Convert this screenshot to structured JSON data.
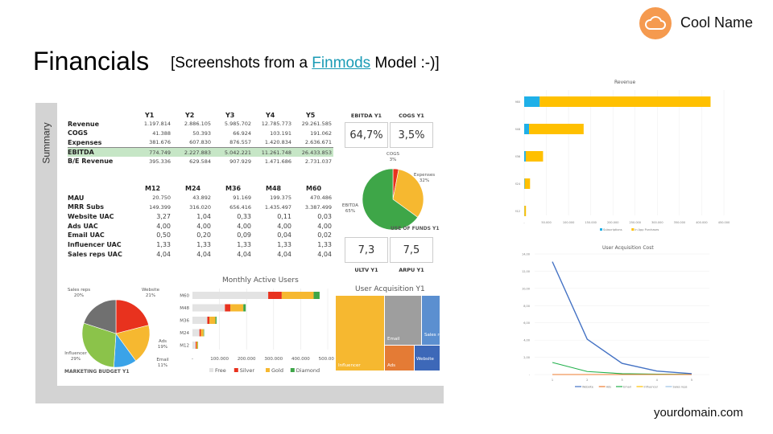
{
  "header": {
    "brand_name": "Cool Name",
    "logo_icon": "cloud-icon",
    "logo_color": "#f59a4f",
    "title": "Financials",
    "subtitle_prefix": "[Screenshots from a ",
    "subtitle_link": "Finmods",
    "subtitle_suffix": " Model :-)]",
    "link_color": "#1a9bb5"
  },
  "footer": {
    "domain": "yourdomain.com"
  },
  "summary": {
    "side_label": "Summary",
    "yearly": {
      "columns": [
        "Y1",
        "Y2",
        "Y3",
        "Y4",
        "Y5"
      ],
      "rows": [
        {
          "label": "Revenue",
          "values": [
            "1.197.814",
            "2.886.105",
            "5.985.702",
            "12.785.773",
            "29.261.585"
          ]
        },
        {
          "label": "COGS",
          "values": [
            "41.388",
            "50.393",
            "66.924",
            "103.191",
            "191.062"
          ]
        },
        {
          "label": "Expenses",
          "values": [
            "381.676",
            "607.830",
            "876.557",
            "1.420.834",
            "2.636.671"
          ]
        },
        {
          "label": "EBITDA",
          "values": [
            "774.749",
            "2.227.883",
            "5.042.221",
            "11.261.748",
            "26.433.853"
          ]
        },
        {
          "label": "B/E Revenue",
          "values": [
            "395.336",
            "629.584",
            "907.929",
            "1.471.686",
            "2.731.037"
          ]
        }
      ]
    },
    "monthly": {
      "columns": [
        "M12",
        "M24",
        "M36",
        "M48",
        "M60"
      ],
      "rows": [
        {
          "label": "MAU",
          "values": [
            "20.750",
            "43.892",
            "91.169",
            "199.375",
            "470.486"
          ]
        },
        {
          "label": "MRR Subs",
          "values": [
            "149.399",
            "316.020",
            "656.416",
            "1.435.497",
            "3.387.499"
          ]
        },
        {
          "label": "Website UAC",
          "values": [
            "3,27",
            "1,04",
            "0,33",
            "0,11",
            "0,03"
          ]
        },
        {
          "label": "Ads UAC",
          "values": [
            "4,00",
            "4,00",
            "4,00",
            "4,00",
            "4,00"
          ]
        },
        {
          "label": "Email UAC",
          "values": [
            "0,50",
            "0,20",
            "0,09",
            "0,04",
            "0,02"
          ]
        },
        {
          "label": "Influencer UAC",
          "values": [
            "1,33",
            "1,33",
            "1,33",
            "1,33",
            "1,33"
          ]
        },
        {
          "label": "Sales reps UAC",
          "values": [
            "4,04",
            "4,04",
            "4,04",
            "4,04",
            "4,04"
          ]
        }
      ]
    },
    "kpis": [
      {
        "label": "EBITDA Y1",
        "value": "64,7%"
      },
      {
        "label": "COGS Y1",
        "value": "3,5%"
      },
      {
        "label": "ULTV Y1",
        "value": "7,3"
      },
      {
        "label": "ARPU Y1",
        "value": "7,5"
      }
    ]
  },
  "chart_data": [
    {
      "type": "pie",
      "title": "USE OF FUNDS Y1",
      "slices": [
        {
          "name": "COGS",
          "value": 3,
          "label": "3%",
          "color": "#e8321e"
        },
        {
          "name": "Expenses",
          "value": 32,
          "label": "32%",
          "color": "#f6b830"
        },
        {
          "name": "EBITDA",
          "value": 65,
          "label": "65%",
          "color": "#3ea648"
        }
      ]
    },
    {
      "type": "pie",
      "title": "MARKETING BUDGET Y1",
      "slices": [
        {
          "name": "Website",
          "value": 21,
          "label": "21%",
          "color": "#e8321e"
        },
        {
          "name": "Ads",
          "value": 19,
          "label": "19%",
          "color": "#f6b830"
        },
        {
          "name": "Email",
          "value": 11,
          "label": "11%",
          "color": "#3aa3e8"
        },
        {
          "name": "Influencer",
          "value": 29,
          "label": "29%",
          "color": "#8bc34a"
        },
        {
          "name": "Sales reps",
          "value": 20,
          "label": "20%",
          "color": "#707070"
        }
      ]
    },
    {
      "type": "bar",
      "orientation": "horizontal-stacked",
      "title": "Monthly Active Users",
      "categories": [
        "M60",
        "M48",
        "M36",
        "M24",
        "M12"
      ],
      "series": [
        {
          "name": "Free",
          "color": "#e3e3e3",
          "values": [
            280000,
            120000,
            55000,
            26000,
            12000
          ]
        },
        {
          "name": "Silver",
          "color": "#e8321e",
          "values": [
            50000,
            20000,
            8000,
            5000,
            3000
          ]
        },
        {
          "name": "Gold",
          "color": "#f6b830",
          "values": [
            118000,
            48000,
            22000,
            10000,
            4500
          ]
        },
        {
          "name": "Diamond",
          "color": "#3ea648",
          "values": [
            22000,
            9000,
            4000,
            2000,
            1200
          ]
        }
      ],
      "xticks": [
        "-",
        "100.000",
        "200.000",
        "300.000",
        "400.000",
        "500.000"
      ],
      "xlim": [
        0,
        500000
      ],
      "legend": "bottom"
    },
    {
      "type": "treemap",
      "title": "User Acquisition Y1",
      "items": [
        {
          "name": "Influencer",
          "color": "#f6b830"
        },
        {
          "name": "Email",
          "color": "#9e9e9e"
        },
        {
          "name": "Sales reps",
          "color": "#5b8fd0"
        },
        {
          "name": "Ads",
          "color": "#e47b35"
        },
        {
          "name": "Website",
          "color": "#3d68b8"
        }
      ]
    },
    {
      "type": "bar",
      "orientation": "horizontal-stacked",
      "title": "Revenue",
      "categories": [
        "M60",
        "M48",
        "M36",
        "M24",
        "M12"
      ],
      "series": [
        {
          "name": "Subscriptions",
          "color": "#1fb0e8",
          "values": [
            35000,
            11000,
            3500,
            1200,
            500
          ]
        },
        {
          "name": "In App Purchases",
          "color": "#ffc000",
          "values": [
            385000,
            123000,
            39000,
            12000,
            3500
          ]
        }
      ],
      "xticks": [
        "-",
        "50.000",
        "100.000",
        "150.000",
        "200.000",
        "250.000",
        "300.000",
        "350.000",
        "400.000",
        "450.000"
      ],
      "xlim": [
        0,
        450000
      ],
      "legend": "bottom"
    },
    {
      "type": "line",
      "title": "User Acquisition Cost",
      "x": [
        1,
        2,
        3,
        4,
        5
      ],
      "series": [
        {
          "name": "Website",
          "color": "#4472c4",
          "values": [
            13.1,
            4.1,
            1.3,
            0.4,
            0.1
          ]
        },
        {
          "name": "Ads",
          "color": "#ed7d31",
          "values": [
            0,
            0,
            0,
            0,
            0
          ]
        },
        {
          "name": "Email",
          "color": "#21b04b",
          "values": [
            1.4,
            0.35,
            0.1,
            0.04,
            0.02
          ]
        },
        {
          "name": "Influencer",
          "color": "#ffc000",
          "values": [
            0,
            0,
            0,
            0,
            0
          ]
        },
        {
          "name": "Sales reps",
          "color": "#9dc3e6",
          "values": [
            0,
            0,
            0,
            0,
            0
          ]
        }
      ],
      "yticks": [
        "-",
        "2,00",
        "4,00",
        "6,00",
        "8,00",
        "10,00",
        "12,00",
        "14,00"
      ],
      "ylim": [
        0,
        14
      ],
      "legend": "bottom"
    }
  ]
}
